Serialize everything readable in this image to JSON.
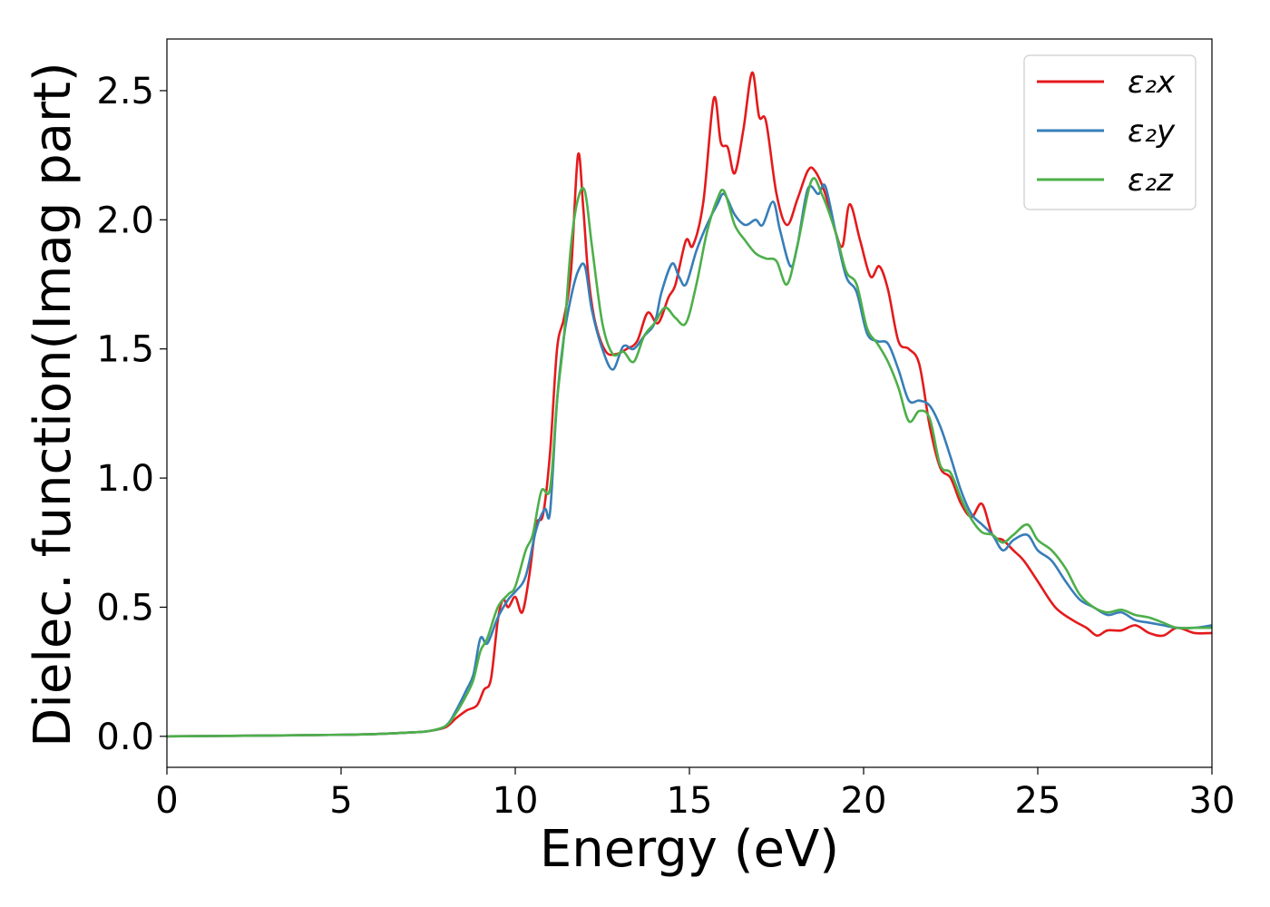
{
  "chart_data": {
    "type": "line",
    "xlabel": "Energy (eV)",
    "ylabel": "Dielec. function(Imag part)",
    "xlim": [
      0,
      30
    ],
    "ylim": [
      -0.12,
      2.7
    ],
    "xticks": [
      0,
      5,
      10,
      15,
      20,
      25,
      30
    ],
    "xtick_labels": [
      "0",
      "5",
      "10",
      "15",
      "20",
      "25",
      "30"
    ],
    "yticks": [
      0.0,
      0.5,
      1.0,
      1.5,
      2.0,
      2.5
    ],
    "ytick_labels": [
      "0.0",
      "0.5",
      "1.0",
      "1.5",
      "2.0",
      "2.5"
    ],
    "grid": false,
    "legend_position": "top-right",
    "series": [
      {
        "name": "ε₂x",
        "color": "#e41a1c",
        "points": [
          [
            0,
            0.0
          ],
          [
            3,
            0.003
          ],
          [
            5,
            0.006
          ],
          [
            6,
            0.009
          ],
          [
            7,
            0.015
          ],
          [
            7.5,
            0.02
          ],
          [
            8,
            0.035
          ],
          [
            8.3,
            0.07
          ],
          [
            8.6,
            0.1
          ],
          [
            8.9,
            0.12
          ],
          [
            9.1,
            0.18
          ],
          [
            9.3,
            0.22
          ],
          [
            9.5,
            0.45
          ],
          [
            9.65,
            0.53
          ],
          [
            9.8,
            0.5
          ],
          [
            10.0,
            0.54
          ],
          [
            10.2,
            0.48
          ],
          [
            10.4,
            0.62
          ],
          [
            10.6,
            0.82
          ],
          [
            10.8,
            0.86
          ],
          [
            11.0,
            1.1
          ],
          [
            11.2,
            1.5
          ],
          [
            11.4,
            1.62
          ],
          [
            11.6,
            1.8
          ],
          [
            11.8,
            2.25
          ],
          [
            11.95,
            2.05
          ],
          [
            12.1,
            1.78
          ],
          [
            12.3,
            1.6
          ],
          [
            12.6,
            1.49
          ],
          [
            12.9,
            1.48
          ],
          [
            13.2,
            1.5
          ],
          [
            13.5,
            1.53
          ],
          [
            13.8,
            1.64
          ],
          [
            14.1,
            1.6
          ],
          [
            14.4,
            1.7
          ],
          [
            14.6,
            1.75
          ],
          [
            14.9,
            1.92
          ],
          [
            15.1,
            1.9
          ],
          [
            15.4,
            2.07
          ],
          [
            15.7,
            2.47
          ],
          [
            15.9,
            2.3
          ],
          [
            16.1,
            2.28
          ],
          [
            16.3,
            2.18
          ],
          [
            16.55,
            2.35
          ],
          [
            16.8,
            2.57
          ],
          [
            17.0,
            2.4
          ],
          [
            17.2,
            2.38
          ],
          [
            17.5,
            2.1
          ],
          [
            17.8,
            1.98
          ],
          [
            18.1,
            2.08
          ],
          [
            18.4,
            2.19
          ],
          [
            18.6,
            2.19
          ],
          [
            18.9,
            2.1
          ],
          [
            19.2,
            1.95
          ],
          [
            19.4,
            1.9
          ],
          [
            19.6,
            2.06
          ],
          [
            19.9,
            1.92
          ],
          [
            20.2,
            1.78
          ],
          [
            20.45,
            1.82
          ],
          [
            20.7,
            1.73
          ],
          [
            21.0,
            1.53
          ],
          [
            21.3,
            1.5
          ],
          [
            21.6,
            1.44
          ],
          [
            21.9,
            1.2
          ],
          [
            22.2,
            1.04
          ],
          [
            22.5,
            1.0
          ],
          [
            22.8,
            0.9
          ],
          [
            23.1,
            0.85
          ],
          [
            23.4,
            0.9
          ],
          [
            23.7,
            0.78
          ],
          [
            24.0,
            0.76
          ],
          [
            24.3,
            0.72
          ],
          [
            24.6,
            0.68
          ],
          [
            25.0,
            0.6
          ],
          [
            25.5,
            0.5
          ],
          [
            26.0,
            0.45
          ],
          [
            26.4,
            0.42
          ],
          [
            26.7,
            0.39
          ],
          [
            27.0,
            0.41
          ],
          [
            27.4,
            0.41
          ],
          [
            27.8,
            0.43
          ],
          [
            28.2,
            0.4
          ],
          [
            28.6,
            0.39
          ],
          [
            29.0,
            0.42
          ],
          [
            29.5,
            0.4
          ],
          [
            30,
            0.4
          ]
        ]
      },
      {
        "name": "ε₂y",
        "color": "#377eb8",
        "points": [
          [
            0,
            0.0
          ],
          [
            3,
            0.003
          ],
          [
            5,
            0.006
          ],
          [
            6,
            0.009
          ],
          [
            7,
            0.015
          ],
          [
            7.5,
            0.02
          ],
          [
            8,
            0.04
          ],
          [
            8.3,
            0.1
          ],
          [
            8.6,
            0.18
          ],
          [
            8.8,
            0.24
          ],
          [
            9.0,
            0.38
          ],
          [
            9.2,
            0.36
          ],
          [
            9.5,
            0.46
          ],
          [
            9.8,
            0.53
          ],
          [
            10.0,
            0.56
          ],
          [
            10.3,
            0.62
          ],
          [
            10.6,
            0.8
          ],
          [
            10.85,
            0.88
          ],
          [
            11.0,
            0.87
          ],
          [
            11.2,
            1.3
          ],
          [
            11.4,
            1.55
          ],
          [
            11.6,
            1.7
          ],
          [
            11.8,
            1.8
          ],
          [
            12.0,
            1.82
          ],
          [
            12.2,
            1.65
          ],
          [
            12.5,
            1.5
          ],
          [
            12.8,
            1.42
          ],
          [
            13.1,
            1.51
          ],
          [
            13.4,
            1.5
          ],
          [
            13.7,
            1.55
          ],
          [
            14.0,
            1.6
          ],
          [
            14.2,
            1.72
          ],
          [
            14.5,
            1.83
          ],
          [
            14.7,
            1.78
          ],
          [
            14.9,
            1.75
          ],
          [
            15.2,
            1.88
          ],
          [
            15.5,
            1.98
          ],
          [
            15.8,
            2.06
          ],
          [
            16.0,
            2.1
          ],
          [
            16.3,
            2.02
          ],
          [
            16.6,
            1.98
          ],
          [
            16.9,
            2.0
          ],
          [
            17.1,
            1.98
          ],
          [
            17.4,
            2.07
          ],
          [
            17.6,
            1.96
          ],
          [
            17.9,
            1.82
          ],
          [
            18.1,
            1.9
          ],
          [
            18.4,
            2.12
          ],
          [
            18.7,
            2.1
          ],
          [
            18.9,
            2.13
          ],
          [
            19.2,
            1.95
          ],
          [
            19.5,
            1.78
          ],
          [
            19.8,
            1.72
          ],
          [
            20.1,
            1.56
          ],
          [
            20.4,
            1.53
          ],
          [
            20.7,
            1.52
          ],
          [
            21.0,
            1.42
          ],
          [
            21.3,
            1.3
          ],
          [
            21.6,
            1.3
          ],
          [
            21.9,
            1.28
          ],
          [
            22.2,
            1.2
          ],
          [
            22.5,
            1.08
          ],
          [
            22.8,
            0.95
          ],
          [
            23.1,
            0.86
          ],
          [
            23.4,
            0.82
          ],
          [
            23.7,
            0.78
          ],
          [
            24.0,
            0.72
          ],
          [
            24.3,
            0.76
          ],
          [
            24.7,
            0.78
          ],
          [
            25.0,
            0.72
          ],
          [
            25.4,
            0.68
          ],
          [
            25.8,
            0.6
          ],
          [
            26.2,
            0.53
          ],
          [
            26.6,
            0.5
          ],
          [
            27.0,
            0.47
          ],
          [
            27.4,
            0.48
          ],
          [
            27.8,
            0.45
          ],
          [
            28.2,
            0.44
          ],
          [
            28.6,
            0.43
          ],
          [
            29.0,
            0.42
          ],
          [
            29.5,
            0.42
          ],
          [
            30,
            0.43
          ]
        ]
      },
      {
        "name": "ε₂z",
        "color": "#4daf4a",
        "points": [
          [
            0,
            0.0
          ],
          [
            3,
            0.003
          ],
          [
            5,
            0.006
          ],
          [
            6,
            0.009
          ],
          [
            7,
            0.015
          ],
          [
            7.5,
            0.02
          ],
          [
            8,
            0.04
          ],
          [
            8.3,
            0.09
          ],
          [
            8.6,
            0.16
          ],
          [
            8.8,
            0.22
          ],
          [
            9.0,
            0.33
          ],
          [
            9.2,
            0.38
          ],
          [
            9.5,
            0.5
          ],
          [
            9.8,
            0.55
          ],
          [
            10.0,
            0.58
          ],
          [
            10.3,
            0.72
          ],
          [
            10.5,
            0.78
          ],
          [
            10.75,
            0.95
          ],
          [
            11.0,
            0.96
          ],
          [
            11.2,
            1.3
          ],
          [
            11.4,
            1.55
          ],
          [
            11.6,
            1.9
          ],
          [
            11.8,
            2.08
          ],
          [
            12.0,
            2.11
          ],
          [
            12.2,
            1.9
          ],
          [
            12.5,
            1.6
          ],
          [
            12.8,
            1.48
          ],
          [
            13.1,
            1.49
          ],
          [
            13.4,
            1.45
          ],
          [
            13.7,
            1.55
          ],
          [
            14.0,
            1.6
          ],
          [
            14.3,
            1.66
          ],
          [
            14.6,
            1.62
          ],
          [
            14.9,
            1.6
          ],
          [
            15.2,
            1.75
          ],
          [
            15.5,
            1.95
          ],
          [
            15.8,
            2.08
          ],
          [
            16.0,
            2.11
          ],
          [
            16.3,
            1.98
          ],
          [
            16.6,
            1.92
          ],
          [
            16.9,
            1.87
          ],
          [
            17.2,
            1.85
          ],
          [
            17.5,
            1.84
          ],
          [
            17.8,
            1.75
          ],
          [
            18.1,
            1.9
          ],
          [
            18.5,
            2.15
          ],
          [
            18.8,
            2.1
          ],
          [
            19.2,
            1.95
          ],
          [
            19.5,
            1.8
          ],
          [
            19.8,
            1.75
          ],
          [
            20.1,
            1.58
          ],
          [
            20.4,
            1.52
          ],
          [
            20.7,
            1.45
          ],
          [
            21.0,
            1.35
          ],
          [
            21.3,
            1.22
          ],
          [
            21.6,
            1.26
          ],
          [
            21.9,
            1.23
          ],
          [
            22.2,
            1.05
          ],
          [
            22.5,
            1.02
          ],
          [
            22.8,
            0.92
          ],
          [
            23.1,
            0.84
          ],
          [
            23.4,
            0.79
          ],
          [
            23.7,
            0.78
          ],
          [
            24.0,
            0.75
          ],
          [
            24.3,
            0.78
          ],
          [
            24.7,
            0.82
          ],
          [
            25.0,
            0.76
          ],
          [
            25.4,
            0.72
          ],
          [
            25.8,
            0.65
          ],
          [
            26.2,
            0.55
          ],
          [
            26.6,
            0.5
          ],
          [
            27.0,
            0.48
          ],
          [
            27.4,
            0.49
          ],
          [
            27.8,
            0.47
          ],
          [
            28.2,
            0.46
          ],
          [
            28.6,
            0.44
          ],
          [
            29.0,
            0.42
          ],
          [
            29.5,
            0.42
          ],
          [
            30,
            0.42
          ]
        ]
      }
    ]
  }
}
